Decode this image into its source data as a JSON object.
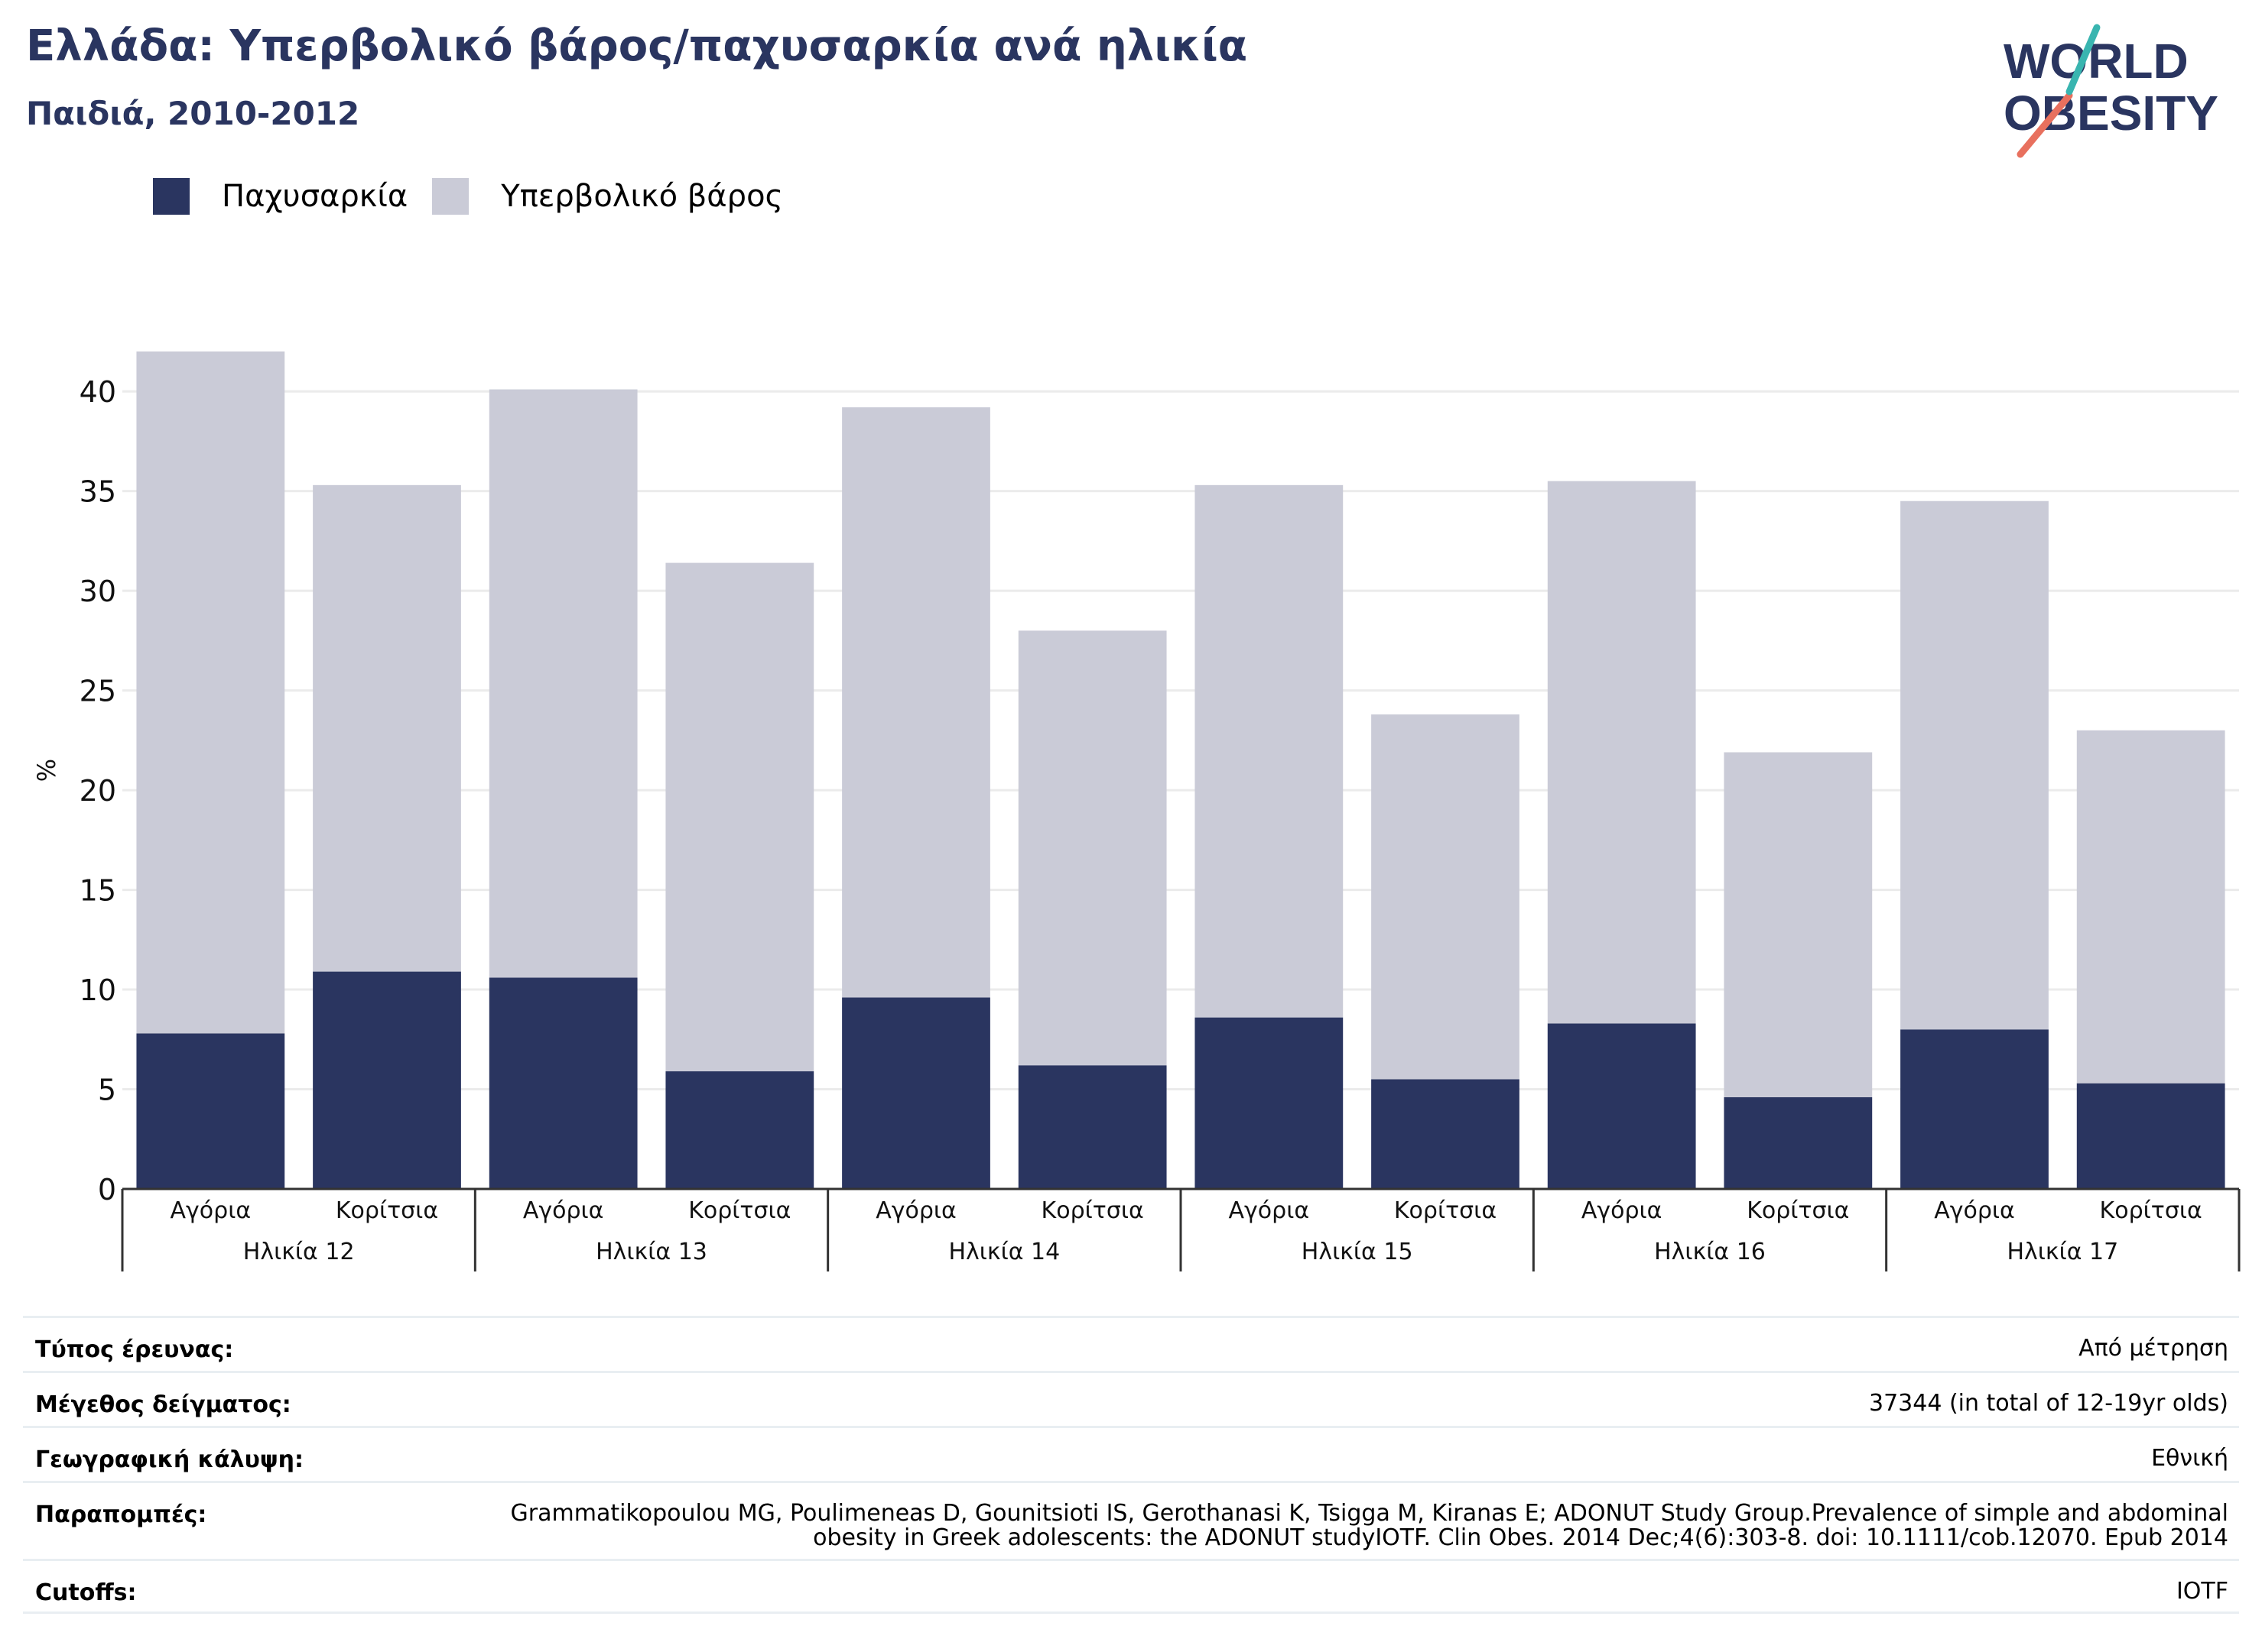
{
  "header": {
    "title": "Ελλάδα: Υπερβολικό βάρος/παχυσαρκία ανά ηλικία",
    "subtitle": "Παιδιά, 2010-2012"
  },
  "logo": {
    "line1": "WORLD",
    "line2": "OBESITY"
  },
  "colors": {
    "obesity": "#2a3560",
    "overweight": "#cacbd7",
    "title": "#2a3560",
    "grid": "#ebebeb"
  },
  "legend": [
    {
      "label": "Παχυσαρκία",
      "color": "#2a3560"
    },
    {
      "label": "Υπερβολικό βάρος",
      "color": "#cacbd7"
    }
  ],
  "chart_data": {
    "type": "bar",
    "stacked": true,
    "ylabel": "%",
    "ylim": [
      0,
      42
    ],
    "yticks": [
      0,
      5,
      10,
      15,
      20,
      25,
      30,
      35,
      40
    ],
    "grid": true,
    "legend_position": "top-left",
    "categories": [
      "Αγόρια",
      "Κορίτσια",
      "Αγόρια",
      "Κορίτσια",
      "Αγόρια",
      "Κορίτσια",
      "Αγόρια",
      "Κορίτσια",
      "Αγόρια",
      "Κορίτσια",
      "Αγόρια",
      "Κορίτσια"
    ],
    "groups": [
      "Ηλικία 12",
      "Ηλικία 13",
      "Ηλικία 14",
      "Ηλικία 15",
      "Ηλικία 16",
      "Ηλικία 17"
    ],
    "series": [
      {
        "name": "Παχυσαρκία",
        "values": [
          7.8,
          10.9,
          10.6,
          5.9,
          9.6,
          6.2,
          8.6,
          5.5,
          8.3,
          4.6,
          8.0,
          5.3
        ]
      },
      {
        "name": "Υπερβολικό βάρος",
        "values": [
          34.2,
          24.4,
          29.5,
          25.5,
          29.6,
          21.8,
          26.7,
          18.3,
          27.2,
          17.3,
          26.5,
          17.7
        ]
      }
    ]
  },
  "info": [
    {
      "label": "Τύπος έρευνας:",
      "value": "Από μέτρηση"
    },
    {
      "label": "Μέγεθος δείγματος:",
      "value": "37344 (in total of 12-19yr olds)"
    },
    {
      "label": "Γεωγραφική κάλυψη:",
      "value": "Εθνική"
    },
    {
      "label": "Παραπομπές:",
      "value": "Grammatikopoulou MG, Poulimeneas D, Gounitsioti IS, Gerothanasi K, Tsigga M, Kiranas E; ADONUT Study Group.Prevalence of simple and abdominal obesity in Greek adolescents: the ADONUT studyIOTF. Clin Obes. 2014 Dec;4(6):303-8. doi: 10.1111/cob.12070. Epub 2014"
    },
    {
      "label": "Cutoffs:",
      "value": "IOTF"
    }
  ]
}
